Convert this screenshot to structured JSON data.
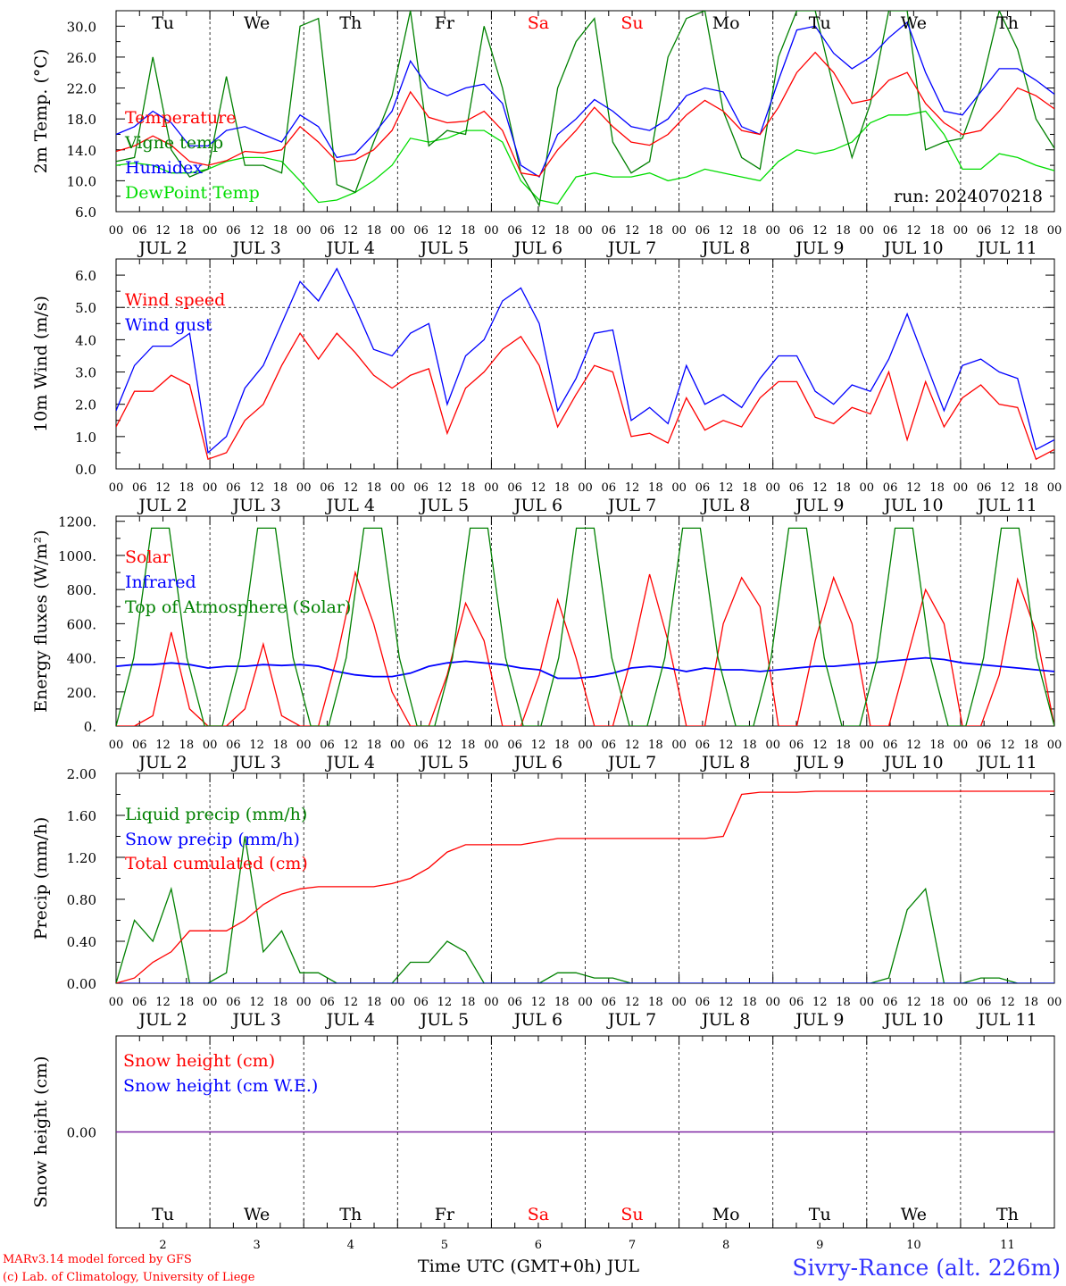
{
  "chart_data": {
    "type": "line",
    "run_label": "run: 2024070218",
    "days": [
      {
        "date_label": "JUL  2",
        "dow": "Tu",
        "weekend": false,
        "bottom_num": "2"
      },
      {
        "date_label": "JUL  3",
        "dow": "We",
        "weekend": false,
        "bottom_num": "3"
      },
      {
        "date_label": "JUL  4",
        "dow": "Th",
        "weekend": false,
        "bottom_num": "4"
      },
      {
        "date_label": "JUL  5",
        "dow": "Fr",
        "weekend": false,
        "bottom_num": "5"
      },
      {
        "date_label": "JUL  6",
        "dow": "Sa",
        "weekend": true,
        "bottom_num": "6"
      },
      {
        "date_label": "JUL  7",
        "dow": "Su",
        "weekend": true,
        "bottom_num": "7"
      },
      {
        "date_label": "JUL  8",
        "dow": "Mo",
        "weekend": false,
        "bottom_num": "8"
      },
      {
        "date_label": "JUL  9",
        "dow": "Tu",
        "weekend": false,
        "bottom_num": "9"
      },
      {
        "date_label": "JUL 10",
        "dow": "We",
        "weekend": false,
        "bottom_num": "10"
      },
      {
        "date_label": "JUL 11",
        "dow": "Th",
        "weekend": false,
        "bottom_num": "11"
      }
    ],
    "hour_ticks": [
      "00",
      "06",
      "12",
      "18"
    ],
    "final_hour_tick": "00",
    "hours_x": [
      0,
      12,
      24,
      36,
      48,
      60,
      72,
      84,
      96,
      108,
      120,
      132,
      144,
      150,
      156,
      162,
      168,
      174,
      180,
      186,
      192,
      198,
      204,
      210,
      216,
      222,
      228,
      234,
      240
    ],
    "panels": [
      {
        "id": "temperature",
        "ylabel": "2m Temp. (°C)",
        "ylim": [
          6,
          32
        ],
        "yticks": [
          6,
          10,
          14,
          18,
          22,
          26,
          30
        ],
        "ytick_labels": [
          "6.0",
          "10.0",
          "14.0",
          "18.0",
          "22.0",
          "26.0",
          "30.0"
        ],
        "hline": null,
        "show_days": true,
        "series": [
          {
            "name": "Temperature",
            "color": "#ff0000",
            "values": [
              13.8,
              14.5,
              15.8,
              14.6,
              12.5,
              12.0,
              12.6,
              13.8,
              13.6,
              14.0,
              17.0,
              15.0,
              12.5,
              12.7,
              14.0,
              16.5,
              21.5,
              18.2,
              17.5,
              17.7,
              19.0,
              16.5,
              11.0,
              10.6,
              14.0,
              16.5,
              19.5,
              17.0,
              15.0,
              14.6,
              16.0,
              18.5,
              20.4,
              19.0,
              16.5,
              16.0,
              19.5,
              24.0,
              26.6,
              24.0,
              20.0,
              20.5,
              23.0,
              24.0,
              20.0,
              17.5,
              16.0,
              16.5,
              19.0,
              22.0,
              21.0,
              19.3
            ]
          },
          {
            "name": "Vigne temp",
            "color": "#008000",
            "values": [
              12.5,
              13.0,
              26.0,
              14.0,
              10.5,
              11.5,
              23.5,
              12.0,
              12.0,
              11.0,
              30.0,
              31.0,
              9.5,
              8.5,
              15.0,
              21.0,
              32.0,
              14.5,
              16.5,
              16.0,
              30.0,
              22.0,
              11.0,
              6.8,
              22.0,
              28.0,
              31.0,
              15.0,
              11.0,
              12.5,
              26.0,
              31.0,
              32.0,
              19.0,
              13.0,
              11.5,
              26.0,
              32.0,
              32.0,
              22.0,
              13.0,
              20.0,
              32.0,
              32.0,
              14.0,
              15.0,
              15.5,
              22.0,
              32.0,
              27.0,
              18.0,
              14.2
            ]
          },
          {
            "name": "Humidex",
            "color": "#0000ff",
            "values": [
              16.0,
              17.0,
              19.0,
              17.5,
              14.5,
              14.5,
              16.5,
              17.0,
              16.0,
              15.0,
              18.5,
              17.0,
              13.0,
              13.5,
              16.0,
              19.0,
              25.5,
              22.0,
              21.0,
              22.0,
              22.5,
              20.0,
              12.0,
              10.5,
              16.0,
              18.0,
              20.5,
              19.0,
              17.0,
              16.5,
              18.0,
              21.0,
              22.0,
              21.5,
              17.0,
              16.0,
              23.0,
              29.5,
              30.0,
              26.5,
              24.5,
              26.0,
              28.5,
              30.5,
              24.0,
              19.0,
              18.5,
              21.5,
              24.5,
              24.5,
              23.0,
              21.2
            ]
          },
          {
            "name": "DewPoint Temp",
            "color": "#00dd00",
            "values": [
              12.0,
              12.3,
              12.0,
              11.0,
              11.0,
              11.5,
              12.5,
              13.0,
              13.0,
              12.5,
              10.0,
              7.2,
              7.5,
              8.5,
              10.0,
              12.0,
              15.5,
              15.0,
              15.5,
              16.5,
              16.5,
              15.0,
              10.0,
              7.5,
              7.0,
              10.5,
              11.0,
              10.5,
              10.5,
              11.0,
              10.0,
              10.5,
              11.5,
              11.0,
              10.5,
              10.0,
              12.5,
              14.0,
              13.5,
              14.0,
              15.0,
              17.5,
              18.5,
              18.5,
              19.0,
              16.0,
              11.5,
              11.5,
              13.5,
              13.0,
              12.0,
              11.3
            ]
          }
        ]
      },
      {
        "id": "wind",
        "ylabel": "10m Wind (m/s)",
        "ylim": [
          0,
          6.5
        ],
        "yticks": [
          0,
          1,
          2,
          3,
          4,
          5,
          6
        ],
        "ytick_labels": [
          "0.0",
          "1.0",
          "2.0",
          "3.0",
          "4.0",
          "5.0",
          "6.0"
        ],
        "hline": 5.0,
        "show_days": false,
        "series": [
          {
            "name": "Wind speed",
            "color": "#ff0000",
            "values": [
              1.3,
              2.4,
              2.4,
              2.9,
              2.6,
              0.3,
              0.5,
              1.5,
              2.0,
              3.2,
              4.2,
              3.4,
              4.2,
              3.6,
              2.9,
              2.5,
              2.9,
              3.1,
              1.1,
              2.5,
              3.0,
              3.7,
              4.1,
              3.2,
              1.3,
              2.3,
              3.2,
              3.0,
              1.0,
              1.1,
              0.8,
              2.2,
              1.2,
              1.5,
              1.3,
              2.2,
              2.7,
              2.7,
              1.6,
              1.4,
              1.9,
              1.7,
              3.0,
              0.9,
              2.7,
              1.3,
              2.2,
              2.6,
              2.0,
              1.9,
              0.3,
              0.6
            ]
          },
          {
            "name": "Wind gust",
            "color": "#0000ff",
            "values": [
              1.8,
              3.2,
              3.8,
              3.8,
              4.2,
              0.5,
              1.0,
              2.5,
              3.2,
              4.5,
              5.8,
              5.2,
              6.2,
              5.0,
              3.7,
              3.5,
              4.2,
              4.5,
              2.0,
              3.5,
              4.0,
              5.2,
              5.6,
              4.5,
              1.8,
              2.8,
              4.2,
              4.3,
              1.5,
              1.9,
              1.4,
              3.2,
              2.0,
              2.3,
              1.9,
              2.8,
              3.5,
              3.5,
              2.4,
              2.0,
              2.6,
              2.4,
              3.4,
              4.8,
              3.3,
              1.8,
              3.2,
              3.4,
              3.0,
              2.8,
              0.6,
              0.9
            ]
          }
        ]
      },
      {
        "id": "energy",
        "ylabel": "Energy fluxes (W/m²)",
        "ylim": [
          0,
          1230
        ],
        "yticks": [
          0,
          200,
          400,
          600,
          800,
          1000,
          1200
        ],
        "ytick_labels": [
          "0.",
          "200.",
          "400.",
          "600.",
          "800.",
          "1000.",
          "1200."
        ],
        "hline": null,
        "show_days": false,
        "series": [
          {
            "name": "Solar",
            "color": "#ff0000",
            "values": [
              0,
              0,
              60,
              550,
              100,
              0,
              0,
              100,
              480,
              60,
              0,
              0,
              400,
              900,
              600,
              200,
              0,
              0,
              300,
              720,
              500,
              0,
              0,
              300,
              740,
              400,
              0,
              0,
              400,
              890,
              500,
              0,
              0,
              600,
              870,
              700,
              0,
              0,
              500,
              870,
              600,
              0,
              0,
              400,
              800,
              600,
              0,
              0,
              300,
              860,
              550,
              0
            ]
          },
          {
            "name": "Infrared",
            "color": "#0000ff",
            "values": [
              350,
              360,
              360,
              370,
              360,
              340,
              350,
              350,
              360,
              355,
              360,
              350,
              320,
              300,
              290,
              290,
              310,
              350,
              370,
              380,
              370,
              360,
              340,
              330,
              280,
              280,
              290,
              310,
              340,
              350,
              340,
              320,
              340,
              330,
              330,
              320,
              330,
              340,
              350,
              350,
              360,
              370,
              380,
              390,
              400,
              390,
              370,
              360,
              350,
              340,
              330,
              320
            ]
          },
          {
            "name": "Top of Atmosphere (Solar)",
            "color": "#008000",
            "values": [
              0,
              400,
              1160,
              1160,
              400,
              0,
              0,
              400,
              1160,
              1160,
              400,
              0,
              0,
              400,
              1160,
              1160,
              400,
              0,
              0,
              400,
              1160,
              1160,
              400,
              0,
              0,
              400,
              1160,
              1160,
              400,
              0,
              0,
              400,
              1160,
              1160,
              400,
              0,
              0,
              400,
              1160,
              1160,
              400,
              0,
              0,
              400,
              1160,
              1160,
              400,
              0,
              0,
              400,
              1160,
              1160,
              400,
              0
            ]
          }
        ]
      },
      {
        "id": "precip",
        "ylabel": "Precip (mm/h)",
        "ylim": [
          0,
          2.0
        ],
        "yticks": [
          0,
          0.4,
          0.8,
          1.2,
          1.6,
          2.0
        ],
        "ytick_labels": [
          "0.00",
          "0.40",
          "0.80",
          "1.20",
          "1.60",
          "2.00"
        ],
        "hline": null,
        "show_days": false,
        "series": [
          {
            "name": "Liquid precip (mm/h)",
            "color": "#008000",
            "values": [
              0,
              0.6,
              0.4,
              0.9,
              0,
              0,
              0.1,
              1.4,
              0.3,
              0.5,
              0.1,
              0.1,
              0,
              0,
              0,
              0,
              0.2,
              0.2,
              0.4,
              0.3,
              0,
              0,
              0,
              0,
              0.1,
              0.1,
              0.05,
              0.05,
              0,
              0,
              0,
              0,
              0,
              0,
              0,
              0,
              0,
              0,
              0,
              0,
              0,
              0,
              0.05,
              0.7,
              0.9,
              0,
              0,
              0.05,
              0.05,
              0,
              0,
              0
            ]
          },
          {
            "name": "Snow precip (mm/h)",
            "color": "#0000ff",
            "values": [
              0,
              0,
              0,
              0,
              0,
              0,
              0,
              0,
              0,
              0,
              0,
              0,
              0,
              0,
              0,
              0,
              0,
              0,
              0,
              0,
              0,
              0,
              0,
              0,
              0,
              0,
              0,
              0,
              0,
              0,
              0,
              0,
              0,
              0,
              0,
              0,
              0,
              0,
              0,
              0,
              0,
              0,
              0,
              0,
              0,
              0,
              0,
              0,
              0,
              0,
              0,
              0
            ]
          },
          {
            "name": "Total cumulated (cm)",
            "color": "#ff0000",
            "values": [
              0,
              0.05,
              0.2,
              0.3,
              0.5,
              0.5,
              0.5,
              0.6,
              0.75,
              0.85,
              0.9,
              0.92,
              0.92,
              0.92,
              0.92,
              0.95,
              1.0,
              1.1,
              1.25,
              1.32,
              1.32,
              1.32,
              1.32,
              1.35,
              1.38,
              1.38,
              1.38,
              1.38,
              1.38,
              1.38,
              1.38,
              1.38,
              1.38,
              1.4,
              1.8,
              1.82,
              1.82,
              1.82,
              1.83,
              1.83,
              1.83,
              1.83,
              1.83,
              1.83,
              1.83,
              1.83,
              1.83,
              1.83,
              1.83,
              1.83,
              1.83,
              1.83
            ]
          }
        ]
      },
      {
        "id": "snow",
        "ylabel": "Snow height (cm)",
        "ylim": [
          -1,
          1
        ],
        "yticks": [
          0
        ],
        "ytick_labels": [
          "0.00"
        ],
        "hline": null,
        "show_days": true,
        "series": [
          {
            "name": "Snow height (cm)",
            "color": "#ff0000",
            "values": [
              0,
              0
            ]
          },
          {
            "name": "Snow height (cm W.E.)",
            "color": "#0000ff",
            "values": [
              0,
              0
            ]
          }
        ]
      }
    ],
    "xlabel": "Time UTC (GMT+0h) JUL",
    "credit_line1": "MARv3.14 model forced by GFS",
    "credit_line2": "(c) Lab. of Climatology, University of Liege",
    "station": "Sivry-Rance (alt. 226m)"
  }
}
